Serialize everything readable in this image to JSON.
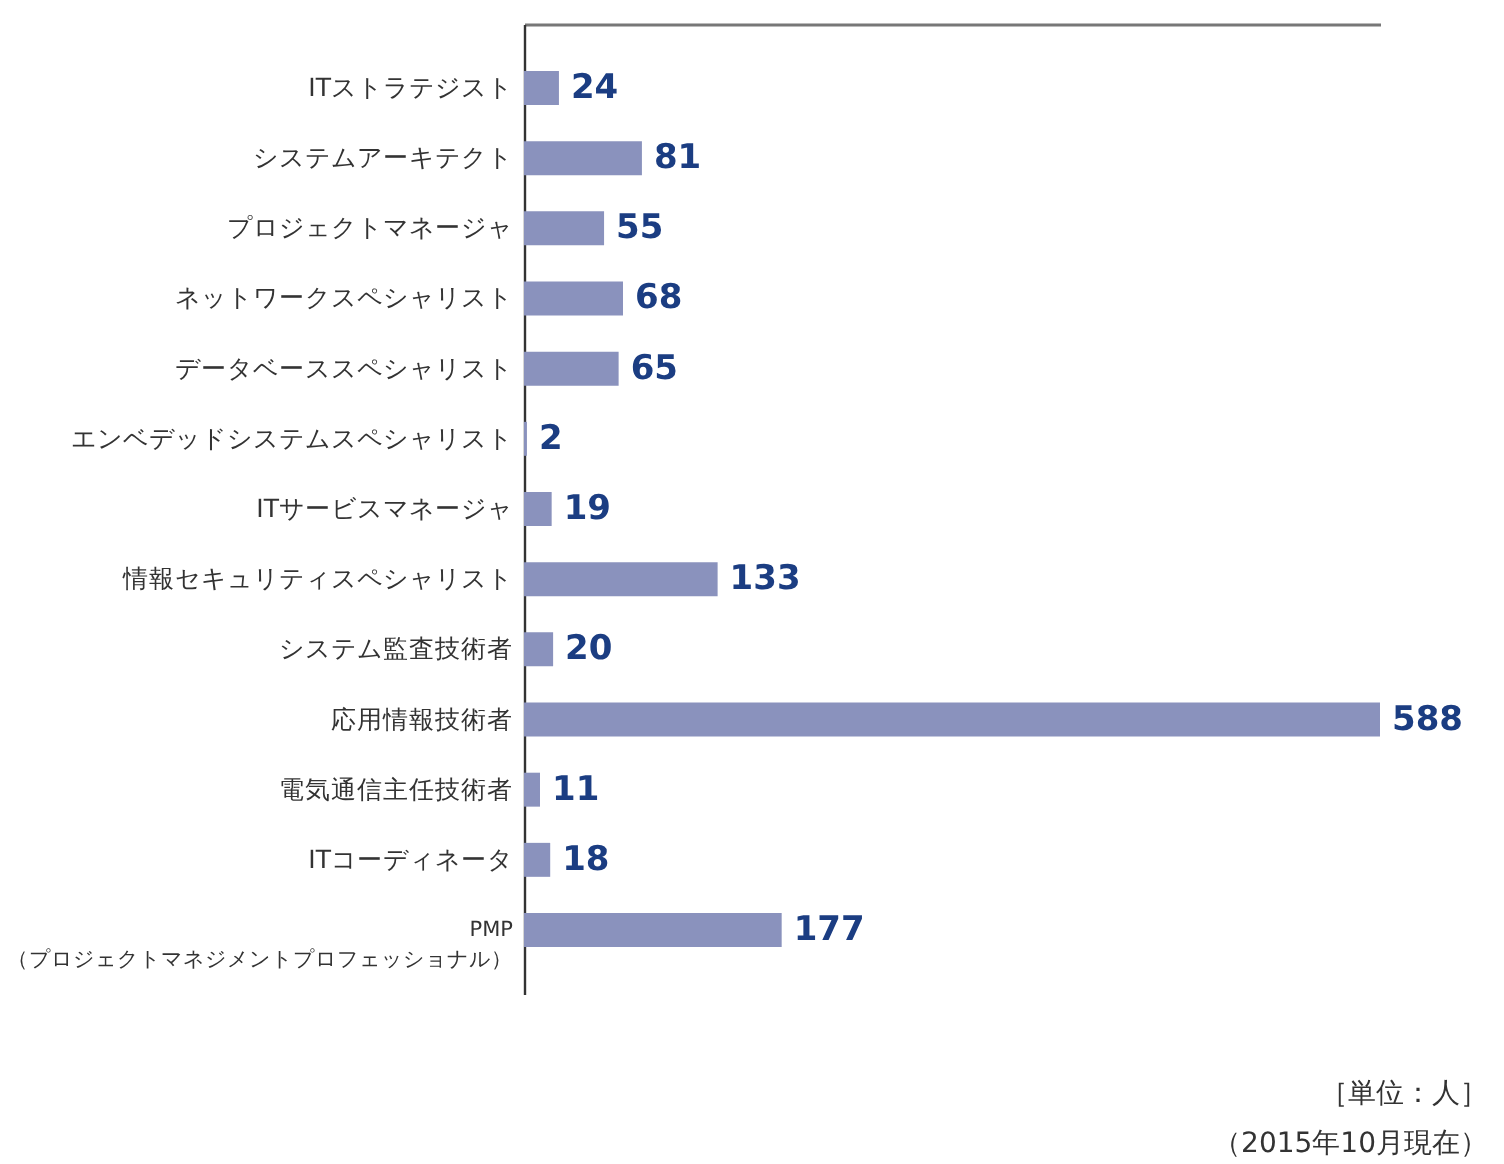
{
  "chart_data": {
    "type": "bar",
    "orientation": "horizontal",
    "categories": [
      "ITストラテジスト",
      "システムアーキテクト",
      "プロジェクトマネージャ",
      "ネットワークスペシャリスト",
      "データベーススペシャリスト",
      "エンベデッドシステムスペシャリスト",
      "ITサービスマネージャ",
      "情報セキュリティスペシャリスト",
      "システム監査技術者",
      "応用情報技術者",
      "電気通信主任技術者",
      "ITコーディネータ",
      "PMP\n（プロジェクトマネジメントプロフェッショナル）"
    ],
    "values": [
      24,
      81,
      55,
      68,
      65,
      2,
      19,
      133,
      20,
      588,
      11,
      18,
      177
    ],
    "color": "#8a92bd",
    "data_labels": true,
    "tick_labels": "y",
    "annotations": [
      "［単位：人］",
      "（2015年10月現在）"
    ]
  }
}
